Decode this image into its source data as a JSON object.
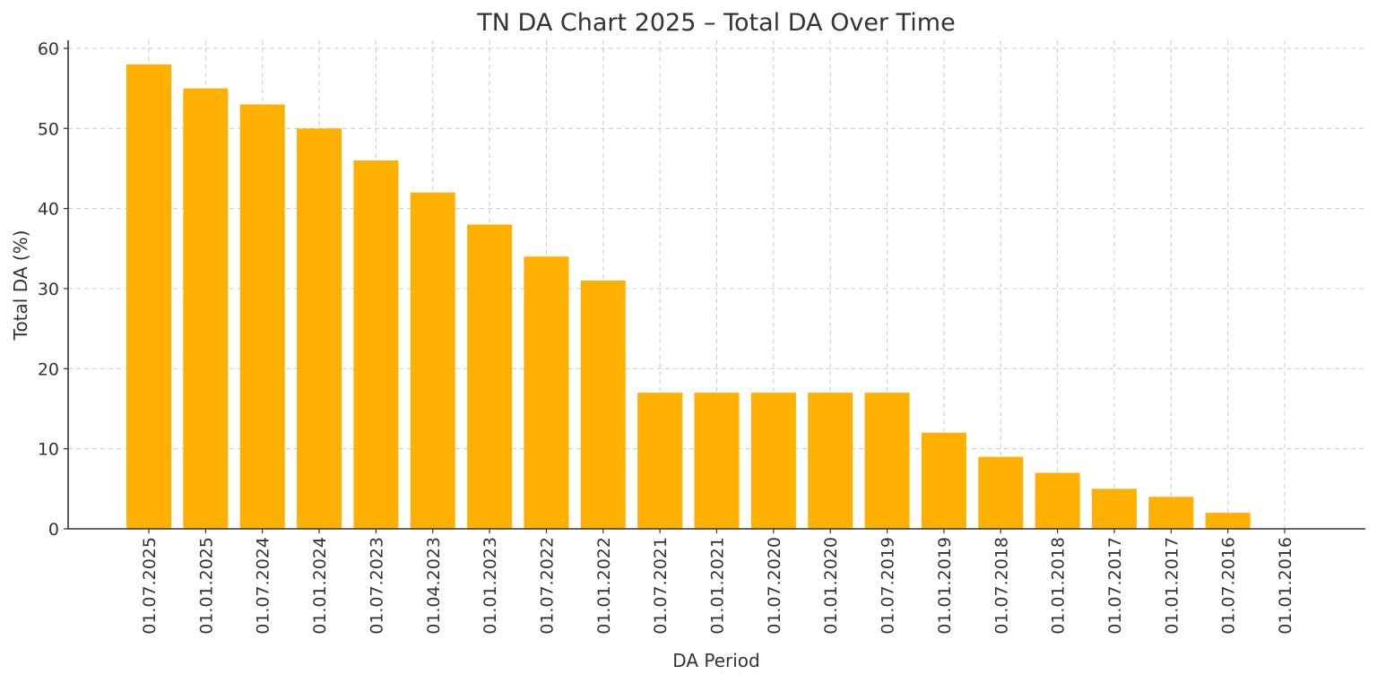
{
  "chart_data": {
    "type": "bar",
    "title": "TN DA Chart 2025 – Total DA Over Time",
    "xlabel": "DA Period",
    "ylabel": "Total DA (%)",
    "categories": [
      "01.07.2025",
      "01.01.2025",
      "01.07.2024",
      "01.01.2024",
      "01.07.2023",
      "01.04.2023",
      "01.01.2023",
      "01.07.2022",
      "01.01.2022",
      "01.07.2021",
      "01.01.2021",
      "01.07.2020",
      "01.01.2020",
      "01.07.2019",
      "01.01.2019",
      "01.07.2018",
      "01.01.2018",
      "01.07.2017",
      "01.01.2017",
      "01.07.2016",
      "01.01.2016"
    ],
    "values": [
      58,
      55,
      53,
      50,
      46,
      42,
      38,
      34,
      31,
      17,
      17,
      17,
      17,
      17,
      12,
      9,
      7,
      5,
      4,
      2,
      0
    ],
    "ylim": [
      0,
      61
    ],
    "yticks": [
      0,
      10,
      20,
      30,
      40,
      50,
      60
    ],
    "grid": true,
    "bar_color": "#FFB000"
  }
}
